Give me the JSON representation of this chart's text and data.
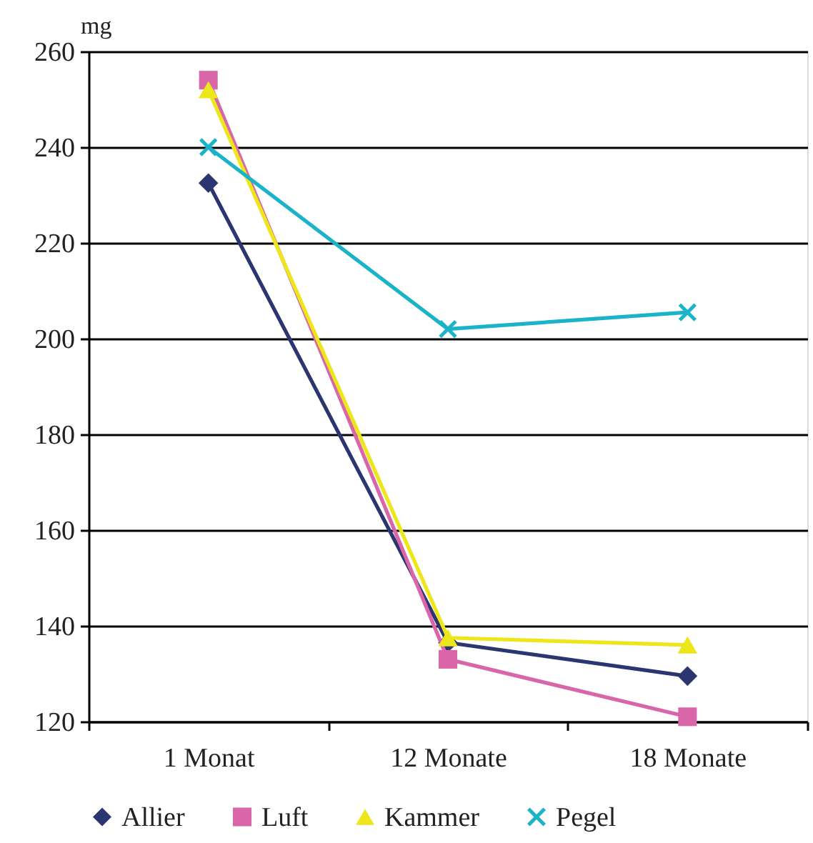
{
  "chart_data": {
    "type": "line",
    "ylabel": "mg",
    "categories": [
      "1 Monat",
      "12 Monate",
      "18 Monate"
    ],
    "ylim": [
      120,
      260
    ],
    "yticks": [
      120,
      140,
      160,
      180,
      200,
      220,
      240,
      260
    ],
    "grid": "y",
    "legend": "bottom",
    "line_style": "solid",
    "series": [
      {
        "name": "Allier",
        "color": "#2b3570",
        "marker": "diamond",
        "values": [
          232.5,
          136.5,
          129.5
        ]
      },
      {
        "name": "Luft",
        "color": "#d966a8",
        "marker": "square",
        "values": [
          254,
          133,
          121
        ]
      },
      {
        "name": "Kammer",
        "color": "#ece61a",
        "marker": "triangle",
        "values": [
          252,
          137.5,
          136
        ]
      },
      {
        "name": "Pegel",
        "color": "#1ab3c8",
        "marker": "cross",
        "values": [
          240,
          202,
          205.5
        ]
      }
    ]
  }
}
